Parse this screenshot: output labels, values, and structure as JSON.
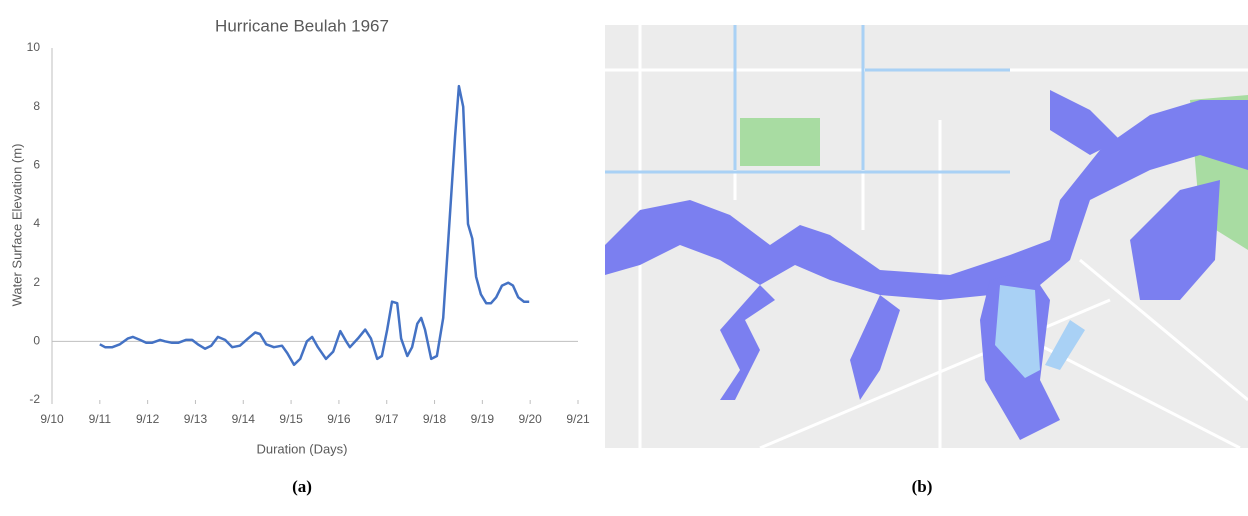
{
  "chart_data": {
    "type": "line",
    "title": "Hurricane Beulah 1967",
    "xlabel": "Duration (Days)",
    "ylabel": "Water Surface Elevation (m)",
    "xlim": [
      10,
      21
    ],
    "xticks": [
      {
        "value": 10,
        "label": "9/10"
      },
      {
        "value": 11,
        "label": "9/11"
      },
      {
        "value": 12,
        "label": "9/12"
      },
      {
        "value": 13,
        "label": "9/13"
      },
      {
        "value": 14,
        "label": "9/14"
      },
      {
        "value": 15,
        "label": "9/15"
      },
      {
        "value": 16,
        "label": "9/16"
      },
      {
        "value": 17,
        "label": "9/17"
      },
      {
        "value": 18,
        "label": "9/18"
      },
      {
        "value": 19,
        "label": "9/19"
      },
      {
        "value": 20,
        "label": "9/20"
      },
      {
        "value": 21,
        "label": "9/21"
      }
    ],
    "ylim": [
      -2,
      10
    ],
    "yticks": [
      -2,
      0,
      2,
      4,
      6,
      8,
      10
    ],
    "grid": false,
    "x": [
      11.0,
      11.11,
      11.26,
      11.42,
      11.59,
      11.69,
      11.84,
      11.97,
      12.09,
      12.26,
      12.36,
      12.51,
      12.64,
      12.8,
      12.93,
      13.05,
      13.2,
      13.33,
      13.47,
      13.62,
      13.77,
      13.93,
      14.1,
      14.25,
      14.35,
      14.48,
      14.64,
      14.81,
      14.92,
      15.06,
      15.19,
      15.33,
      15.44,
      15.56,
      15.73,
      15.88,
      16.03,
      16.15,
      16.23,
      16.4,
      16.55,
      16.67,
      16.8,
      16.9,
      17.01,
      17.11,
      17.22,
      17.3,
      17.43,
      17.53,
      17.64,
      17.72,
      17.8,
      17.93,
      18.05,
      18.18,
      18.33,
      18.43,
      18.51,
      18.6,
      18.7,
      18.79,
      18.87,
      18.97,
      19.08,
      19.18,
      19.29,
      19.41,
      19.54,
      19.64,
      19.75,
      19.87,
      19.98
    ],
    "series": [
      {
        "name": "Water Surface Elevation",
        "color": "#4472c4",
        "values": [
          -0.1,
          -0.2,
          -0.2,
          -0.1,
          0.1,
          0.15,
          0.05,
          -0.05,
          -0.05,
          0.05,
          0.0,
          -0.05,
          -0.05,
          0.05,
          0.05,
          -0.1,
          -0.25,
          -0.15,
          0.15,
          0.05,
          -0.2,
          -0.15,
          0.1,
          0.3,
          0.25,
          -0.1,
          -0.2,
          -0.15,
          -0.4,
          -0.8,
          -0.6,
          0.0,
          0.15,
          -0.2,
          -0.6,
          -0.35,
          0.35,
          0.0,
          -0.2,
          0.1,
          0.4,
          0.1,
          -0.6,
          -0.5,
          0.4,
          1.35,
          1.3,
          0.1,
          -0.5,
          -0.2,
          0.6,
          0.8,
          0.4,
          -0.6,
          -0.5,
          0.8,
          4.5,
          7.0,
          8.7,
          8.0,
          4.0,
          3.5,
          2.2,
          1.6,
          1.3,
          1.3,
          1.5,
          1.9,
          2.0,
          1.9,
          1.5,
          1.35,
          1.35
        ]
      }
    ]
  },
  "captions": [
    "(a)",
    "(b)"
  ]
}
